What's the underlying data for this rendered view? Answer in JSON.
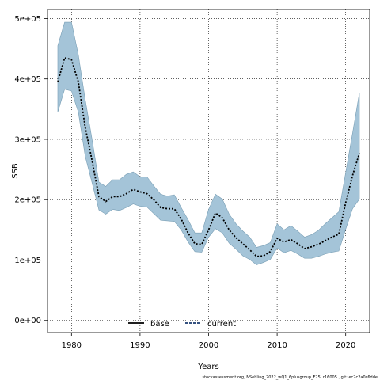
{
  "chart_data": {
    "type": "area",
    "xlabel": "Years",
    "ylabel": "SSB",
    "xlim": [
      1976.5,
      2023.5
    ],
    "ylim": [
      -20000,
      515000
    ],
    "x_ticks": [
      1980,
      1990,
      2000,
      2010,
      2020
    ],
    "x_tick_labels": [
      "1980",
      "1990",
      "2000",
      "2010",
      "2020"
    ],
    "y_ticks": [
      0,
      100000,
      200000,
      300000,
      400000,
      500000
    ],
    "y_tick_labels": [
      "0e+00",
      "1e+05",
      "2e+05",
      "3e+05",
      "4e+05",
      "5e+05"
    ],
    "grid": true,
    "legend_placement": "bottom-center",
    "x": [
      1978,
      1979,
      1980,
      1981,
      1982,
      1983,
      1984,
      1985,
      1986,
      1987,
      1988,
      1989,
      1990,
      1991,
      1992,
      1993,
      1994,
      1995,
      1996,
      1997,
      1998,
      1999,
      2000,
      2001,
      2002,
      2003,
      2004,
      2005,
      2006,
      2007,
      2008,
      2009,
      2010,
      2011,
      2012,
      2013,
      2014,
      2015,
      2016,
      2017,
      2018,
      2019,
      2020,
      2021,
      2022
    ],
    "series": [
      {
        "name": "current",
        "style": "dotted",
        "color": "#000000",
        "values": [
          395000,
          435000,
          432000,
          395000,
          320000,
          265000,
          205000,
          197000,
          205000,
          205000,
          210000,
          217000,
          213000,
          210000,
          200000,
          187000,
          185000,
          185000,
          168000,
          145000,
          127000,
          126000,
          150000,
          178000,
          170000,
          150000,
          137000,
          127000,
          117000,
          106000,
          107000,
          114000,
          136000,
          130000,
          134000,
          127000,
          119000,
          122000,
          126000,
          132000,
          138000,
          143000,
          195000,
          240000,
          277000
        ]
      }
    ],
    "band": {
      "color": "#a4c4d8",
      "edge_color": "#7a9fb5",
      "lower": [
        345000,
        383000,
        380000,
        345000,
        272000,
        228000,
        183000,
        176000,
        184000,
        182000,
        187000,
        193000,
        189000,
        188000,
        177000,
        166000,
        165000,
        164000,
        150000,
        130000,
        114000,
        113000,
        138000,
        152000,
        145000,
        128000,
        118000,
        107000,
        101000,
        92000,
        96000,
        101000,
        120000,
        112000,
        116000,
        110000,
        103000,
        103000,
        106000,
        110000,
        113000,
        115000,
        151000,
        185000,
        201000
      ],
      "upper": [
        455000,
        494000,
        494000,
        440000,
        366000,
        300000,
        229000,
        222000,
        233000,
        233000,
        242000,
        246000,
        238000,
        238000,
        223000,
        209000,
        206000,
        208000,
        187000,
        167000,
        145000,
        145000,
        184000,
        209000,
        201000,
        176000,
        160000,
        148000,
        138000,
        121000,
        124000,
        129000,
        160000,
        150000,
        157000,
        148000,
        138000,
        142000,
        149000,
        160000,
        170000,
        180000,
        245000,
        310000,
        377000
      ]
    },
    "legend": [
      {
        "label": "base",
        "style": "solid",
        "color": "#000000"
      },
      {
        "label": "current",
        "style": "dashed",
        "color": "#1a3a6e"
      }
    ]
  },
  "caption": "stockassessment.org, NSehling_2022_wQ1_6plusgroup_F25, r16005 , git: ec2c2a0c6dde"
}
